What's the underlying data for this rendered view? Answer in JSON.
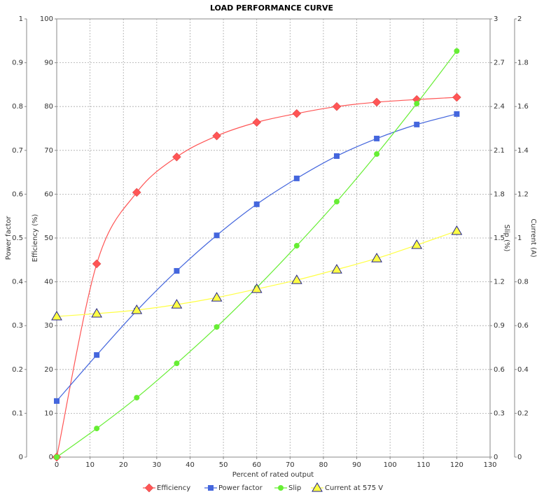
{
  "chart_data": {
    "type": "line",
    "title": "LOAD PERFORMANCE CURVE",
    "xlabel": "Percent of rated output",
    "x": [
      0,
      12,
      24,
      36,
      48,
      60,
      72,
      84,
      96,
      108,
      120
    ],
    "xlim": [
      0,
      130
    ],
    "xticks": [
      0,
      10,
      20,
      30,
      40,
      50,
      60,
      70,
      80,
      90,
      100,
      110,
      120,
      130
    ],
    "ylabel": "Power factor",
    "ylim": [
      0,
      1
    ],
    "yticks": [
      0,
      0.1,
      0.2,
      0.3,
      0.4,
      0.5,
      0.6,
      0.7,
      0.8,
      0.9,
      1
    ],
    "y2label": "Efficiency (%)",
    "y2lim": [
      0,
      100
    ],
    "y2ticks": [
      0,
      10,
      20,
      30,
      40,
      50,
      60,
      70,
      80,
      90,
      100
    ],
    "y3label": "Slip (%)",
    "y3lim": [
      0,
      3
    ],
    "y3ticks": [
      0,
      0.3,
      0.6,
      0.9,
      1.2,
      1.5,
      1.8,
      2.1,
      2.4,
      2.7,
      3
    ],
    "y4label": "Current (A)",
    "y4lim": [
      0,
      2
    ],
    "y4ticks": [
      0,
      0.2,
      0.4,
      0.6,
      0.8,
      1,
      1.2,
      1.4,
      1.6,
      1.8,
      2
    ],
    "grid": true,
    "legend": "bottom",
    "series": [
      {
        "name": "Efficiency",
        "color": "#ff5555",
        "marker": "diamond",
        "axis": "y2",
        "values": [
          0,
          44.1,
          60.4,
          68.5,
          73.3,
          76.4,
          78.4,
          80,
          81,
          81.6,
          82.1
        ]
      },
      {
        "name": "Power factor",
        "color": "#4466dd",
        "marker": "square",
        "axis": "y",
        "values": [
          0.128,
          0.233,
          0.334,
          0.425,
          0.506,
          0.577,
          0.636,
          0.687,
          0.727,
          0.759,
          0.783
        ]
      },
      {
        "name": "Slip",
        "color": "#66ee33",
        "marker": "circle",
        "axis": "y3",
        "values": [
          0,
          0.196,
          0.407,
          0.642,
          0.891,
          1.16,
          1.447,
          1.749,
          2.075,
          2.42,
          2.78
        ]
      },
      {
        "name": "Current at 575 V",
        "color": "#ffff44",
        "marker": "triangle",
        "axis": "y4",
        "values": [
          0.642,
          0.655,
          0.671,
          0.696,
          0.728,
          0.767,
          0.808,
          0.856,
          0.907,
          0.968,
          1.032
        ]
      }
    ]
  }
}
